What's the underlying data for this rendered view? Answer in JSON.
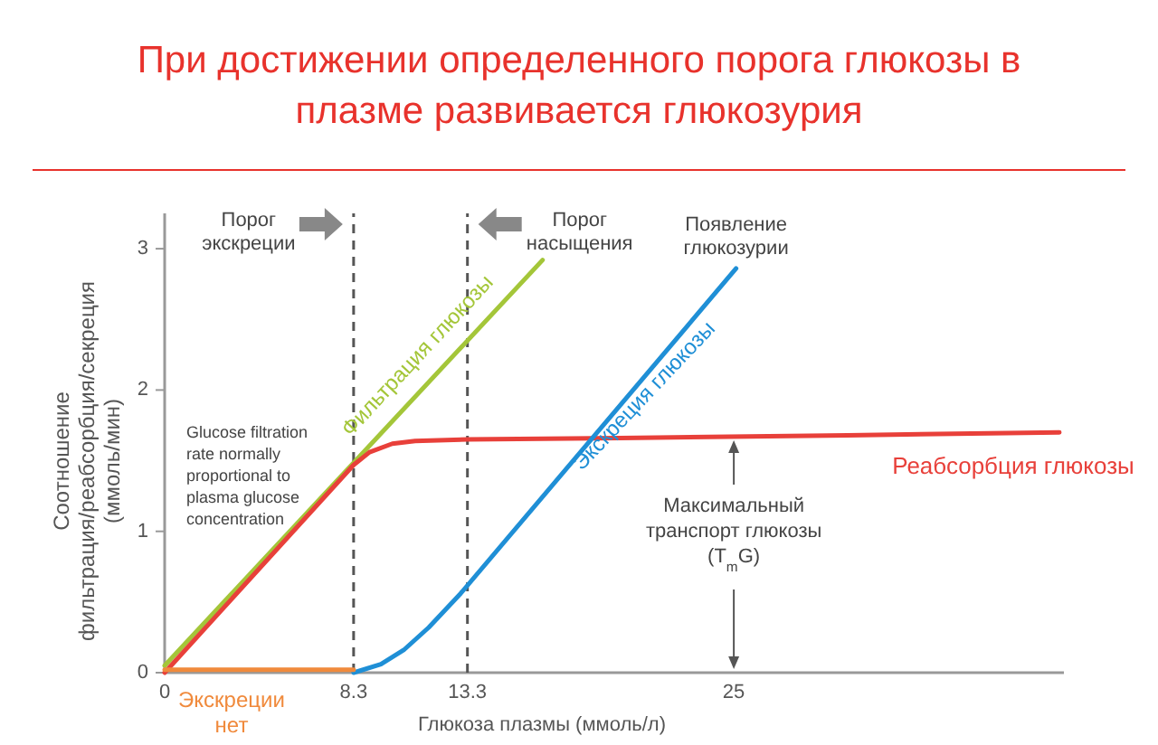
{
  "chart_data": {
    "type": "line",
    "title": "При достижении определенного порога глюкозы в плазме развивается глюкозурия",
    "xlabel": "Глюкоза плазмы (ммоль/л)",
    "ylabel": "Соотношение фильтрация/реабсорбция/секреция (ммоль/мин)",
    "xlim": [
      0,
      39.5
    ],
    "ylim": [
      0,
      3.25
    ],
    "xticks": [
      0,
      8.3,
      13.3,
      25
    ],
    "yticks": [
      0,
      1,
      2,
      3
    ],
    "grid": false,
    "marker": "none",
    "line_style": "solid",
    "series": [
      {
        "name": "Фильтрация глюкозы",
        "color": "#a4c639",
        "x": [
          0,
          16.6
        ],
        "values": [
          0.05,
          2.92
        ]
      },
      {
        "name": "Реабсорбция глюкозы",
        "color": "#e8403a",
        "x": [
          0,
          8.3,
          9,
          10,
          11,
          13.3,
          20,
          30,
          39.3
        ],
        "values": [
          0,
          1.47,
          1.56,
          1.62,
          1.64,
          1.65,
          1.66,
          1.68,
          1.7
        ]
      },
      {
        "name": "Экскреция глюкозы",
        "color": "#1f8fd6",
        "x": [
          8.3,
          9.5,
          10.5,
          11.6,
          13,
          25.1
        ],
        "values": [
          0,
          0.06,
          0.16,
          0.32,
          0.56,
          2.86
        ]
      },
      {
        "name": "Экскреции нет",
        "color": "#f08a3c",
        "x": [
          0,
          8.3
        ],
        "values": [
          0.02,
          0.02
        ]
      }
    ],
    "ref_lines": [
      {
        "axis": "x",
        "value": 8.3,
        "label": "Порог экскреции",
        "line_style": "dashed",
        "color": "#555555"
      },
      {
        "axis": "x",
        "value": 13.3,
        "label": "Порог насыщения",
        "line_style": "dashed",
        "color": "#555555"
      }
    ],
    "annotations": [
      "Glucose filtration rate normally proportional to plasma glucose concentration",
      {
        "text": "Появление глюкозурии",
        "x": 25.1,
        "y": 2.86
      },
      {
        "text": "Максимальный транспорт глюкозы (T$_{m}$G)",
        "x": 25,
        "y": 1.67
      }
    ]
  }
}
